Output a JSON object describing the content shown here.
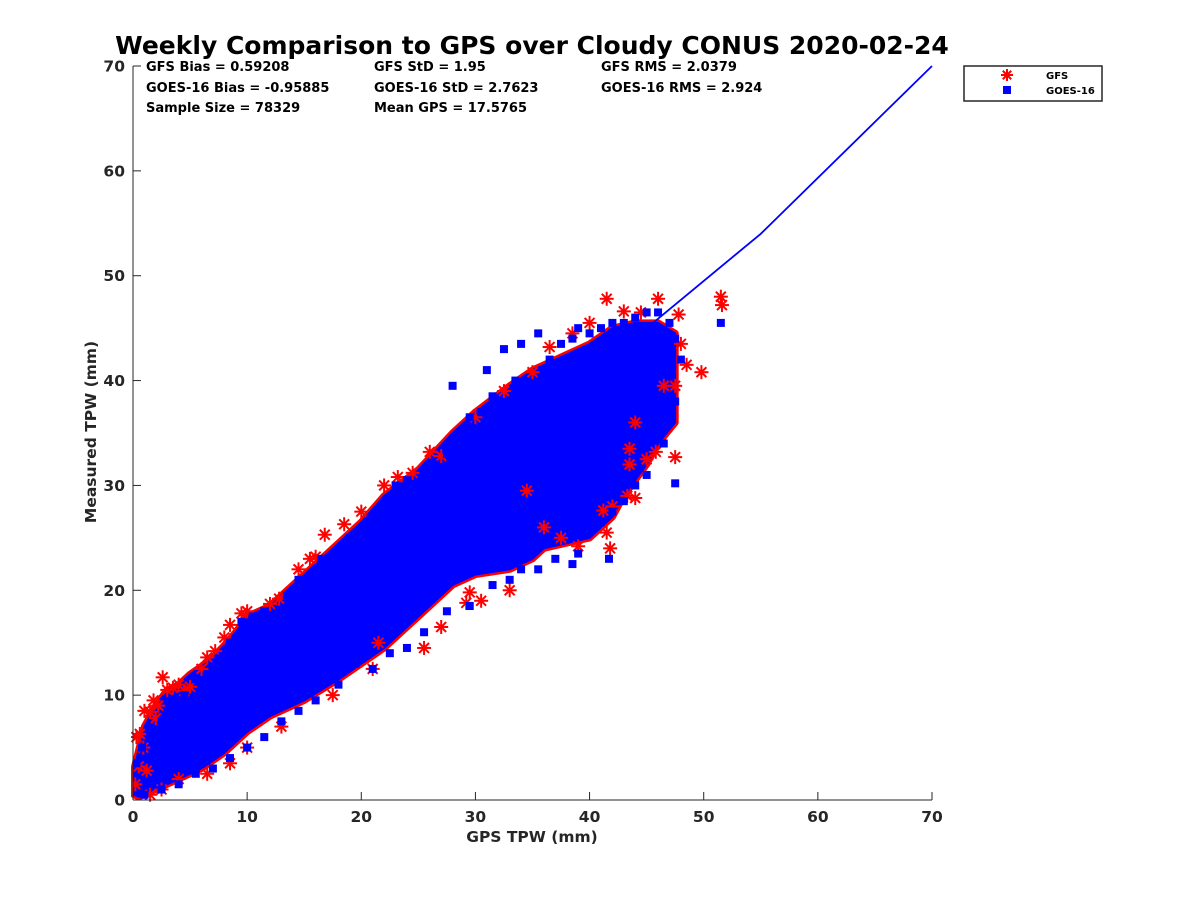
{
  "chart_data": {
    "type": "scatter",
    "title": "Weekly Comparison to GPS over Cloudy CONUS 2020-02-24",
    "xlabel": "GPS TPW (mm)",
    "ylabel": "Measured TPW (mm)",
    "xlim": [
      0,
      70
    ],
    "ylim": [
      0,
      70
    ],
    "xticks": [
      "0",
      "10",
      "20",
      "30",
      "40",
      "50",
      "60",
      "70"
    ],
    "yticks": [
      "0",
      "10",
      "20",
      "30",
      "40",
      "50",
      "60",
      "70"
    ],
    "grid": false,
    "legend_position": "outside-top-right",
    "stats": [
      [
        "GFS Bias = 0.59208",
        "GFS StD = 1.95",
        "GFS RMS = 2.0379"
      ],
      [
        "GOES-16 Bias = -0.95885",
        "GOES-16 StD = 2.7623",
        "GOES-16 RMS = 2.924"
      ],
      [
        "Sample Size = 78329",
        "Mean GPS = 17.5765",
        ""
      ]
    ],
    "series": [
      {
        "name": "GFS",
        "marker": "asterisk",
        "color": "#ff0000",
        "points": [
          [
            0.2,
            1.5
          ],
          [
            0.3,
            6.0
          ],
          [
            0.5,
            3.2
          ],
          [
            0.6,
            6.3
          ],
          [
            0.9,
            5.0
          ],
          [
            1.0,
            8.5
          ],
          [
            1.2,
            2.8
          ],
          [
            1.5,
            8.4
          ],
          [
            1.8,
            9.5
          ],
          [
            2.0,
            7.8
          ],
          [
            2.2,
            9.0
          ],
          [
            2.6,
            11.7
          ],
          [
            3.0,
            10.5
          ],
          [
            3.5,
            10.7
          ],
          [
            4.0,
            11.0
          ],
          [
            4.5,
            10.4
          ],
          [
            5.0,
            10.8
          ],
          [
            6.0,
            12.5
          ],
          [
            6.5,
            13.6
          ],
          [
            7.2,
            14.2
          ],
          [
            8.0,
            15.5
          ],
          [
            8.5,
            16.7
          ],
          [
            9.5,
            17.8
          ],
          [
            10.0,
            18.0
          ],
          [
            12.0,
            18.7
          ],
          [
            12.8,
            19.2
          ],
          [
            14.5,
            22.0
          ],
          [
            15.5,
            23.0
          ],
          [
            16.0,
            23.2
          ],
          [
            16.8,
            25.3
          ],
          [
            18.5,
            26.3
          ],
          [
            20.0,
            27.5
          ],
          [
            22.0,
            30.0
          ],
          [
            23.2,
            30.8
          ],
          [
            24.5,
            31.2
          ],
          [
            26.0,
            33.2
          ],
          [
            27.0,
            32.8
          ],
          [
            30.0,
            36.5
          ],
          [
            32.5,
            39.0
          ],
          [
            35.0,
            40.8
          ],
          [
            36.5,
            43.2
          ],
          [
            38.5,
            44.5
          ],
          [
            40.0,
            45.5
          ],
          [
            41.5,
            47.8
          ],
          [
            43.0,
            46.6
          ],
          [
            44.5,
            46.5
          ],
          [
            46.0,
            47.8
          ],
          [
            47.8,
            46.3
          ],
          [
            48.0,
            43.5
          ],
          [
            48.5,
            41.5
          ],
          [
            47.5,
            39.5
          ],
          [
            46.5,
            39.5
          ],
          [
            44.0,
            36.0
          ],
          [
            43.5,
            33.5
          ],
          [
            43.5,
            32.0
          ],
          [
            45.0,
            32.5
          ],
          [
            45.8,
            33.2
          ],
          [
            47.5,
            32.7
          ],
          [
            49.8,
            40.8
          ],
          [
            51.5,
            48.0
          ],
          [
            51.6,
            47.2
          ],
          [
            43.3,
            29.0
          ],
          [
            44.0,
            28.8
          ],
          [
            42.0,
            28.0
          ],
          [
            41.2,
            27.6
          ],
          [
            41.5,
            25.5
          ],
          [
            41.8,
            24.0
          ],
          [
            39.0,
            24.2
          ],
          [
            37.5,
            25.0
          ],
          [
            36.0,
            26.0
          ],
          [
            33.0,
            20.0
          ],
          [
            30.5,
            19.0
          ],
          [
            29.5,
            19.8
          ],
          [
            29.2,
            18.8
          ],
          [
            27.0,
            16.5
          ],
          [
            25.5,
            14.5
          ],
          [
            21.0,
            12.5
          ],
          [
            17.5,
            10.0
          ],
          [
            13.0,
            7.0
          ],
          [
            10.0,
            5.0
          ],
          [
            8.5,
            3.5
          ],
          [
            6.5,
            2.5
          ],
          [
            4.0,
            2.0
          ],
          [
            2.5,
            1.0
          ],
          [
            1.5,
            0.5
          ],
          [
            21.5,
            15.0
          ],
          [
            34.5,
            29.5
          ]
        ]
      },
      {
        "name": "GOES-16",
        "marker": "square",
        "color": "#0000ff",
        "band": {
          "upper": [
            [
              0.1,
              3.0
            ],
            [
              1,
              7.0
            ],
            [
              2,
              9.0
            ],
            [
              3,
              10.5
            ],
            [
              4,
              11.0
            ],
            [
              5,
              12.0
            ],
            [
              7,
              13.5
            ],
            [
              9,
              16.0
            ],
            [
              10,
              17.5
            ],
            [
              12,
              18.5
            ],
            [
              15,
              21.5
            ],
            [
              18,
              24.5
            ],
            [
              20,
              26.5
            ],
            [
              22,
              29.0
            ],
            [
              25,
              31.5
            ],
            [
              28,
              35.0
            ],
            [
              30,
              37.0
            ],
            [
              33,
              39.5
            ],
            [
              35,
              41.0
            ],
            [
              38,
              42.5
            ],
            [
              40,
              43.5
            ],
            [
              42,
              45.0
            ],
            [
              44,
              45.5
            ],
            [
              46,
              45.5
            ],
            [
              47.5,
              44.5
            ]
          ],
          "lower": [
            [
              47.5,
              36.0
            ],
            [
              46,
              34.0
            ],
            [
              45,
              32.0
            ],
            [
              43,
              29.0
            ],
            [
              42,
              27.0
            ],
            [
              40,
              25.0
            ],
            [
              38,
              24.5
            ],
            [
              36,
              24.0
            ],
            [
              35,
              23.0
            ],
            [
              33,
              22.0
            ],
            [
              30,
              21.5
            ],
            [
              28,
              20.5
            ],
            [
              25,
              17.5
            ],
            [
              22,
              14.5
            ],
            [
              20,
              13.0
            ],
            [
              18,
              11.5
            ],
            [
              15,
              9.5
            ],
            [
              12,
              8.0
            ],
            [
              10,
              6.5
            ],
            [
              8,
              4.5
            ],
            [
              6,
              3.0
            ],
            [
              4,
              2.0
            ],
            [
              2,
              1.0
            ],
            [
              0.5,
              0.3
            ],
            [
              0.1,
              0.5
            ]
          ]
        },
        "points": [
          [
            0.3,
            3.5
          ],
          [
            0.8,
            5.0
          ],
          [
            1.5,
            6.0
          ],
          [
            2.5,
            7.5
          ],
          [
            3.5,
            9.5
          ],
          [
            4.5,
            10.0
          ],
          [
            5.5,
            11.5
          ],
          [
            6.5,
            12.0
          ],
          [
            7.5,
            13.5
          ],
          [
            8.5,
            15.0
          ],
          [
            9.5,
            17.0
          ],
          [
            10.5,
            17.5
          ],
          [
            11.5,
            18.0
          ],
          [
            13.5,
            19.5
          ],
          [
            14.5,
            21.0
          ],
          [
            16.5,
            23.0
          ],
          [
            18.0,
            23.5
          ],
          [
            19.0,
            25.0
          ],
          [
            20.5,
            26.5
          ],
          [
            21.5,
            27.0
          ],
          [
            23.0,
            30.0
          ],
          [
            24.0,
            30.5
          ],
          [
            25.5,
            31.0
          ],
          [
            26.5,
            32.0
          ],
          [
            27.5,
            33.0
          ],
          [
            28.0,
            39.5
          ],
          [
            29.5,
            36.5
          ],
          [
            30.5,
            37.0
          ],
          [
            31.0,
            41.0
          ],
          [
            31.5,
            38.5
          ],
          [
            32.5,
            43.0
          ],
          [
            33.5,
            40.0
          ],
          [
            34.0,
            43.5
          ],
          [
            35.5,
            44.5
          ],
          [
            36.5,
            42.0
          ],
          [
            37.5,
            43.5
          ],
          [
            38.5,
            44.0
          ],
          [
            39.0,
            45.0
          ],
          [
            40.0,
            44.5
          ],
          [
            41.0,
            45.0
          ],
          [
            42.0,
            45.5
          ],
          [
            43.0,
            45.5
          ],
          [
            44.0,
            46.0
          ],
          [
            45.0,
            46.5
          ],
          [
            46.0,
            46.5
          ],
          [
            47.0,
            45.5
          ],
          [
            47.5,
            44.0
          ],
          [
            48.0,
            42.0
          ],
          [
            47.5,
            38.0
          ],
          [
            46.5,
            37.0
          ],
          [
            47.0,
            40.5
          ],
          [
            45.5,
            35.0
          ],
          [
            46.5,
            34.0
          ],
          [
            45.0,
            31.0
          ],
          [
            47.5,
            30.2
          ],
          [
            44.0,
            30.0
          ],
          [
            43.0,
            28.5
          ],
          [
            42.0,
            27.5
          ],
          [
            41.0,
            26.5
          ],
          [
            40.0,
            26.0
          ],
          [
            41.7,
            23.0
          ],
          [
            39.0,
            23.5
          ],
          [
            38.5,
            22.5
          ],
          [
            37.0,
            23.0
          ],
          [
            35.5,
            22.0
          ],
          [
            34.0,
            22.0
          ],
          [
            33.0,
            21.0
          ],
          [
            31.5,
            20.5
          ],
          [
            29.5,
            18.5
          ],
          [
            27.5,
            18.0
          ],
          [
            25.5,
            16.0
          ],
          [
            24.0,
            14.5
          ],
          [
            22.5,
            14.0
          ],
          [
            21.0,
            12.5
          ],
          [
            19.5,
            13.0
          ],
          [
            18.0,
            11.0
          ],
          [
            16.0,
            9.5
          ],
          [
            14.5,
            8.5
          ],
          [
            13.0,
            7.5
          ],
          [
            11.5,
            6.0
          ],
          [
            10.0,
            5.0
          ],
          [
            8.5,
            4.0
          ],
          [
            7.0,
            3.0
          ],
          [
            5.5,
            2.5
          ],
          [
            4.0,
            1.5
          ],
          [
            2.5,
            1.0
          ],
          [
            1.0,
            0.5
          ],
          [
            51.5,
            45.5
          ],
          [
            46.0,
            38.5
          ],
          [
            44.5,
            40.0
          ],
          [
            45.5,
            42.5
          ]
        ]
      }
    ],
    "reference_line": {
      "color": "#0000ff",
      "points": [
        [
          45,
          45
        ],
        [
          55,
          54
        ],
        [
          70,
          70
        ]
      ]
    }
  }
}
